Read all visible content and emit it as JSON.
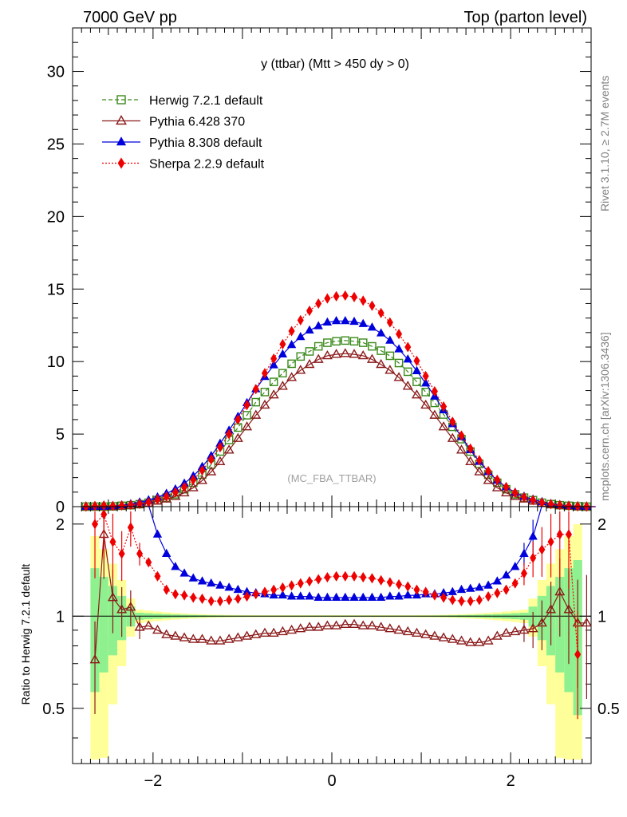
{
  "header": {
    "left": "7000 GeV pp",
    "right": "Top (parton level)"
  },
  "side_labels": {
    "rivet": "Rivet 3.1.10, ≥ 2.7M events",
    "mcplots": "mcplots.cern.ch [arXiv:1306.3436]"
  },
  "chart_data": [
    {
      "panel": "main",
      "type": "line",
      "title": "y (ttbar) (Mtt > 450 dy > 0)",
      "watermark": "(MC_FBA_TTBAR)",
      "xlim": [
        -2.9,
        2.9
      ],
      "ylim": [
        0,
        33
      ],
      "yticks": [
        0,
        5,
        10,
        15,
        20,
        25,
        30
      ],
      "xticks": [
        -2,
        0,
        2
      ],
      "x_step": 0.1,
      "x_start": -2.75,
      "legend_position": "top-left",
      "series": [
        {
          "name": "Herwig 7.2.1 default",
          "color": "#3a8a1a",
          "marker": "open-square",
          "line": "dashed",
          "values": [
            0,
            0,
            0,
            0.02,
            0.06,
            0.1,
            0.17,
            0.27,
            0.45,
            0.62,
            0.85,
            1.2,
            1.65,
            2.2,
            2.9,
            3.8,
            4.6,
            5.45,
            6.3,
            7.2,
            7.9,
            8.6,
            9.2,
            9.85,
            10.35,
            10.7,
            11.05,
            11.3,
            11.4,
            11.45,
            11.4,
            11.3,
            11.05,
            10.75,
            10.4,
            9.9,
            9.3,
            8.6,
            7.9,
            7.15,
            6.35,
            5.5,
            4.65,
            3.8,
            2.95,
            2.2,
            1.65,
            1.2,
            0.85,
            0.62,
            0.45,
            0.27,
            0.17,
            0.1,
            0.06,
            0.02,
            0,
            0
          ]
        },
        {
          "name": "Pythia 6.428 370",
          "color": "#8b1a1a",
          "marker": "open-triangle",
          "line": "solid",
          "values": [
            0,
            0,
            0,
            0.01,
            0.04,
            0.09,
            0.15,
            0.24,
            0.38,
            0.52,
            0.7,
            0.95,
            1.3,
            1.8,
            2.4,
            3.1,
            3.9,
            4.7,
            5.5,
            6.3,
            7.0,
            7.7,
            8.3,
            8.9,
            9.4,
            9.8,
            10.15,
            10.4,
            10.5,
            10.55,
            10.5,
            10.4,
            10.15,
            9.8,
            9.4,
            8.9,
            8.3,
            7.7,
            7.0,
            6.3,
            5.5,
            4.7,
            3.9,
            3.1,
            2.4,
            1.8,
            1.3,
            0.95,
            0.7,
            0.52,
            0.38,
            0.24,
            0.15,
            0.09,
            0.04,
            0.01,
            0,
            0
          ]
        },
        {
          "name": "Pythia 8.308 default",
          "color": "#0000dd",
          "marker": "filled-triangle",
          "line": "solid",
          "values": [
            0,
            0,
            0,
            0.04,
            0.1,
            0.18,
            0.3,
            0.45,
            0.65,
            0.9,
            1.2,
            1.6,
            2.1,
            2.75,
            3.5,
            4.35,
            5.25,
            6.2,
            7.15,
            8.1,
            8.95,
            9.75,
            10.5,
            11.15,
            11.7,
            12.15,
            12.45,
            12.7,
            12.8,
            12.8,
            12.75,
            12.6,
            12.35,
            11.95,
            11.45,
            10.85,
            10.15,
            9.35,
            8.5,
            7.6,
            6.65,
            5.7,
            4.8,
            3.9,
            3.1,
            2.4,
            1.8,
            1.35,
            0.98,
            0.7,
            0.5,
            0.33,
            0.2,
            0.12,
            0.06,
            0.02,
            0,
            0
          ]
        },
        {
          "name": "Sherpa 2.2.9 default",
          "color": "#ee0000",
          "marker": "filled-diamond",
          "line": "dotted",
          "values": [
            0,
            0.05,
            0.08,
            0.05,
            0.08,
            0.12,
            0.19,
            0.3,
            0.5,
            0.7,
            1.0,
            1.35,
            1.85,
            2.5,
            3.25,
            4.1,
            5.0,
            6.0,
            7.0,
            8.1,
            9.2,
            10.2,
            11.2,
            12.1,
            12.85,
            13.5,
            14.0,
            14.35,
            14.5,
            14.55,
            14.45,
            14.2,
            13.85,
            13.35,
            12.7,
            11.9,
            11.0,
            10.05,
            9.0,
            7.95,
            6.9,
            5.85,
            4.9,
            4.0,
            3.2,
            2.45,
            1.85,
            1.35,
            0.95,
            0.65,
            0.45,
            0.28,
            0.17,
            0.1,
            0.05,
            0.02,
            0,
            0
          ]
        }
      ]
    },
    {
      "panel": "ratio",
      "type": "line",
      "ylabel": "Ratio to Herwig 7.2.1 default",
      "xlim": [
        -2.9,
        2.9
      ],
      "ylim": [
        0.33,
        2.28
      ],
      "scale": "log",
      "yticks": [
        0.5,
        1,
        2
      ],
      "xticks": [
        -2,
        0,
        2
      ],
      "reference": 1,
      "series": [
        {
          "name": "Pythia 6.428 370",
          "color": "#8b1a1a",
          "values": [
            null,
            0.72,
            1.85,
            1.15,
            1.05,
            1.07,
            0.92,
            0.93,
            0.9,
            0.87,
            0.86,
            0.85,
            0.84,
            0.84,
            0.83,
            0.83,
            0.84,
            0.85,
            0.86,
            0.87,
            0.88,
            0.88,
            0.89,
            0.9,
            0.91,
            0.92,
            0.92,
            0.93,
            0.93,
            0.94,
            0.94,
            0.93,
            0.93,
            0.92,
            0.91,
            0.9,
            0.89,
            0.88,
            0.87,
            0.86,
            0.85,
            0.84,
            0.83,
            0.82,
            0.82,
            0.83,
            0.86,
            0.88,
            0.89,
            0.9,
            0.91,
            0.95,
            1.05,
            1.2,
            1.05,
            0.95,
            0.95,
            null
          ]
        },
        {
          "name": "Pythia 8.308 default",
          "color": "#0000dd",
          "values": [
            null,
            null,
            null,
            null,
            null,
            null,
            null,
            2.3,
            1.85,
            1.6,
            1.45,
            1.38,
            1.33,
            1.3,
            1.28,
            1.26,
            1.24,
            1.22,
            1.2,
            1.19,
            1.18,
            1.17,
            1.17,
            1.16,
            1.16,
            1.16,
            1.15,
            1.15,
            1.15,
            1.15,
            1.15,
            1.15,
            1.15,
            1.15,
            1.16,
            1.16,
            1.17,
            1.17,
            1.18,
            1.18,
            1.19,
            1.2,
            1.22,
            1.23,
            1.24,
            1.26,
            1.3,
            1.36,
            1.45,
            1.6,
            1.82,
            2.3,
            null,
            null,
            null,
            null,
            null,
            null
          ]
        },
        {
          "name": "Sherpa 2.2.9 default",
          "color": "#ee0000",
          "values": [
            null,
            2.0,
            2.15,
            1.75,
            1.6,
            1.95,
            1.6,
            1.5,
            1.35,
            1.22,
            1.18,
            1.17,
            1.15,
            1.14,
            1.12,
            1.12,
            1.13,
            1.14,
            1.16,
            1.18,
            1.2,
            1.22,
            1.24,
            1.26,
            1.28,
            1.3,
            1.32,
            1.34,
            1.35,
            1.35,
            1.35,
            1.34,
            1.33,
            1.31,
            1.29,
            1.27,
            1.25,
            1.22,
            1.2,
            1.17,
            1.15,
            1.13,
            1.12,
            1.12,
            1.13,
            1.16,
            1.19,
            1.22,
            1.28,
            1.38,
            1.55,
            1.65,
            1.75,
            1.85,
            1.85,
            0.75,
            null,
            null
          ]
        }
      ]
    }
  ]
}
